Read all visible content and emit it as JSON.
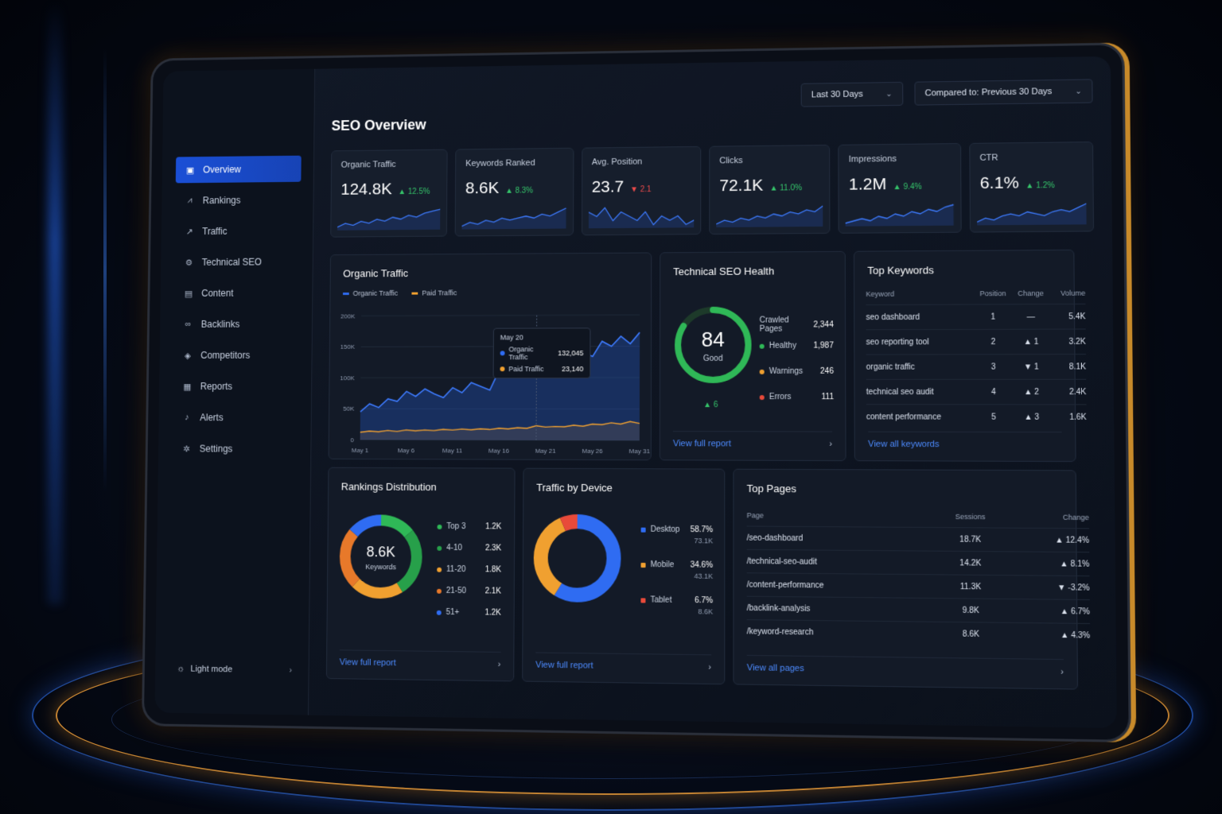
{
  "header": {
    "title": "SEO Overview",
    "date_range": "Last 30 Days",
    "compare": "Compared to: Previous 30 Days"
  },
  "sidebar": {
    "items": [
      {
        "label": "Overview",
        "icon": "overview-icon",
        "glyph": "▣"
      },
      {
        "label": "Rankings",
        "icon": "rankings-icon",
        "glyph": "⩘"
      },
      {
        "label": "Traffic",
        "icon": "traffic-icon",
        "glyph": "↗"
      },
      {
        "label": "Technical SEO",
        "icon": "technical-seo-icon",
        "glyph": "⚙"
      },
      {
        "label": "Content",
        "icon": "content-icon",
        "glyph": "▤"
      },
      {
        "label": "Backlinks",
        "icon": "backlinks-icon",
        "glyph": "∞"
      },
      {
        "label": "Competitors",
        "icon": "competitors-icon",
        "glyph": "◈"
      },
      {
        "label": "Reports",
        "icon": "reports-icon",
        "glyph": "▦"
      },
      {
        "label": "Alerts",
        "icon": "bell-icon",
        "glyph": "♪"
      },
      {
        "label": "Settings",
        "icon": "gear-icon",
        "glyph": "✲"
      }
    ],
    "light_mode": "Light mode"
  },
  "kpis": [
    {
      "label": "Organic Traffic",
      "value": "124.8K",
      "delta": "▲ 12.5%",
      "dir": "up",
      "spark": [
        4,
        6,
        5,
        7,
        6,
        8,
        7,
        9,
        8,
        10,
        9,
        11,
        12,
        13
      ]
    },
    {
      "label": "Keywords Ranked",
      "value": "8.6K",
      "delta": "▲ 8.3%",
      "dir": "up",
      "spark": [
        3,
        5,
        4,
        6,
        5,
        7,
        6,
        7,
        8,
        7,
        9,
        8,
        10,
        12
      ]
    },
    {
      "label": "Avg. Position",
      "value": "23.7",
      "delta": "▼ 2.1",
      "dir": "down",
      "spark": [
        8,
        7,
        9,
        6,
        8,
        7,
        6,
        8,
        5,
        7,
        6,
        7,
        5,
        6
      ]
    },
    {
      "label": "Clicks",
      "value": "72.1K",
      "delta": "▲ 11.0%",
      "dir": "up",
      "spark": [
        3,
        5,
        4,
        6,
        5,
        7,
        6,
        8,
        7,
        9,
        8,
        10,
        9,
        12
      ]
    },
    {
      "label": "Impressions",
      "value": "1.2M",
      "delta": "▲ 9.4%",
      "dir": "up",
      "spark": [
        3,
        4,
        5,
        4,
        6,
        5,
        7,
        6,
        8,
        7,
        9,
        8,
        10,
        11
      ]
    },
    {
      "label": "CTR",
      "value": "6.1%",
      "delta": "▲ 1.2%",
      "dir": "up",
      "spark": [
        3,
        5,
        4,
        6,
        7,
        6,
        8,
        7,
        6,
        8,
        9,
        8,
        10,
        12
      ]
    }
  ],
  "organic_traffic": {
    "title": "Organic Traffic",
    "legend": [
      {
        "name": "Organic Traffic",
        "color": "#2f6cf2"
      },
      {
        "name": "Paid Traffic",
        "color": "#f0a030"
      }
    ],
    "y_ticks": [
      "200K",
      "150K",
      "100K",
      "50K",
      "0"
    ],
    "x_ticks": [
      "May 1",
      "May 6",
      "May 11",
      "May 16",
      "May 21",
      "May 26",
      "May 31"
    ],
    "tooltip": {
      "date": "May 20",
      "organic_label": "Organic Traffic",
      "organic_value": "132,045",
      "paid_label": "Paid Traffic",
      "paid_value": "23,140"
    }
  },
  "chart_data": {
    "type": "area",
    "title": "Organic Traffic",
    "x": [
      "May 1",
      "May 2",
      "May 3",
      "May 4",
      "May 5",
      "May 6",
      "May 7",
      "May 8",
      "May 9",
      "May 10",
      "May 11",
      "May 12",
      "May 13",
      "May 14",
      "May 15",
      "May 16",
      "May 17",
      "May 18",
      "May 19",
      "May 20",
      "May 21",
      "May 22",
      "May 23",
      "May 24",
      "May 25",
      "May 26",
      "May 27",
      "May 28",
      "May 29",
      "May 30",
      "May 31"
    ],
    "ylim": [
      0,
      200000
    ],
    "series": [
      {
        "name": "Organic Traffic",
        "values": [
          45000,
          58000,
          52000,
          66000,
          62000,
          78000,
          70000,
          82000,
          74000,
          68000,
          84000,
          76000,
          92000,
          86000,
          80000,
          112000,
          104000,
          118000,
          110000,
          132045,
          124000,
          138000,
          130000,
          146000,
          140000,
          134000,
          158000,
          150000,
          166000,
          154000,
          172000
        ]
      },
      {
        "name": "Paid Traffic",
        "values": [
          12000,
          14000,
          13000,
          15000,
          13500,
          16000,
          14500,
          16000,
          15000,
          17000,
          16000,
          17500,
          16500,
          18000,
          17000,
          19000,
          18000,
          20000,
          19000,
          23140,
          21000,
          22000,
          21500,
          24000,
          22500,
          26000,
          25000,
          28000,
          26000,
          30000,
          27000
        ]
      }
    ]
  },
  "technical_seo": {
    "title": "Technical SEO Health",
    "score": "84",
    "score_label": "Good",
    "score_fraction": 0.84,
    "delta": "▲ 6",
    "crawled_label": "Crawled Pages",
    "crawled_value": "2,344",
    "rows": [
      {
        "label": "Healthy",
        "value": "1,987",
        "color": "#2fb857"
      },
      {
        "label": "Warnings",
        "value": "246",
        "color": "#f0a030"
      },
      {
        "label": "Errors",
        "value": "111",
        "color": "#e84a3a"
      }
    ],
    "link": "View full report"
  },
  "top_keywords": {
    "title": "Top Keywords",
    "headers": [
      "Keyword",
      "Position",
      "Change",
      "Volume"
    ],
    "rows": [
      {
        "keyword": "seo dashboard",
        "position": "1",
        "change": "—",
        "dir": "flat",
        "volume": "5.4K"
      },
      {
        "keyword": "seo reporting tool",
        "position": "2",
        "change": "▲ 1",
        "dir": "up",
        "volume": "3.2K"
      },
      {
        "keyword": "organic traffic",
        "position": "3",
        "change": "▼ 1",
        "dir": "down",
        "volume": "8.1K"
      },
      {
        "keyword": "technical seo audit",
        "position": "4",
        "change": "▲ 2",
        "dir": "up",
        "volume": "2.4K"
      },
      {
        "keyword": "content performance",
        "position": "5",
        "change": "▲ 3",
        "dir": "up",
        "volume": "1.6K"
      }
    ],
    "link": "View all keywords"
  },
  "rankings": {
    "title": "Rankings Distribution",
    "total": "8.6K",
    "total_label": "Keywords",
    "rows": [
      {
        "label": "Top 3",
        "value": "1.2K",
        "color": "#2fb857",
        "share": 0.14
      },
      {
        "label": "4-10",
        "value": "2.3K",
        "color": "#27a04a",
        "share": 0.27
      },
      {
        "label": "11-20",
        "value": "1.8K",
        "color": "#f0a030",
        "share": 0.21
      },
      {
        "label": "21-50",
        "value": "2.1K",
        "color": "#e8792a",
        "share": 0.24
      },
      {
        "label": "51+",
        "value": "1.2K",
        "color": "#2f6cf2",
        "share": 0.14
      }
    ],
    "link": "View full report"
  },
  "device": {
    "title": "Traffic by Device",
    "rows": [
      {
        "label": "Desktop",
        "pct": "58.7%",
        "sub": "73.1K",
        "color": "#2f6cf2",
        "share": 0.587
      },
      {
        "label": "Mobile",
        "pct": "34.6%",
        "sub": "43.1K",
        "color": "#f0a030",
        "share": 0.346
      },
      {
        "label": "Tablet",
        "pct": "6.7%",
        "sub": "8.6K",
        "color": "#e84a3a",
        "share": 0.067
      }
    ],
    "link": "View full report"
  },
  "top_pages": {
    "title": "Top Pages",
    "headers": [
      "Page",
      "Sessions",
      "Change"
    ],
    "rows": [
      {
        "page": "/seo-dashboard",
        "sessions": "18.7K",
        "change": "▲ 12.4%",
        "dir": "up"
      },
      {
        "page": "/technical-seo-audit",
        "sessions": "14.2K",
        "change": "▲ 8.1%",
        "dir": "up"
      },
      {
        "page": "/content-performance",
        "sessions": "11.3K",
        "change": "▼ -3.2%",
        "dir": "down"
      },
      {
        "page": "/backlink-analysis",
        "sessions": "9.8K",
        "change": "▲ 6.7%",
        "dir": "up"
      },
      {
        "page": "/keyword-research",
        "sessions": "8.6K",
        "change": "▲ 4.3%",
        "dir": "up"
      }
    ],
    "link": "View all pages"
  }
}
